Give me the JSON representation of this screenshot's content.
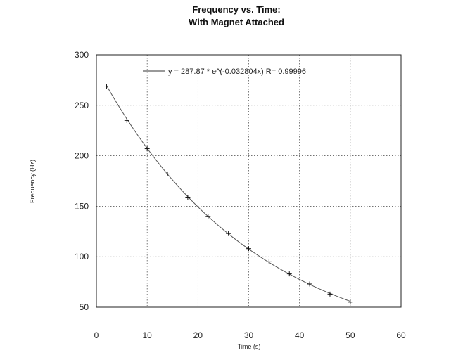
{
  "chart_data": {
    "type": "scatter",
    "title": "Frequency vs. Time:",
    "subtitle": "With Magnet Attached",
    "xlabel": "Time (s)",
    "ylabel": "Frequency (Hz)",
    "xlim": [
      0,
      60
    ],
    "ylim": [
      50,
      300
    ],
    "x_ticks": [
      0,
      10,
      20,
      30,
      40,
      50,
      60
    ],
    "y_ticks": [
      50,
      100,
      150,
      200,
      250,
      300
    ],
    "grid": true,
    "legend_position": "top",
    "fit": {
      "label": "y = 287.87 * e^(-0.032804x)  R= 0.99996",
      "a": 287.87,
      "b": -0.032804,
      "x_range": [
        2,
        50
      ]
    },
    "series": [
      {
        "x": [
          2,
          6,
          10,
          14,
          18,
          22,
          26,
          30,
          34,
          38,
          42,
          46,
          50
        ],
        "y": [
          269,
          235,
          207,
          182,
          159,
          140,
          123,
          108,
          95,
          83,
          73,
          63,
          55
        ]
      }
    ],
    "colors": {
      "fit": "#555555",
      "grid": "#444444",
      "points": "#111111"
    }
  }
}
